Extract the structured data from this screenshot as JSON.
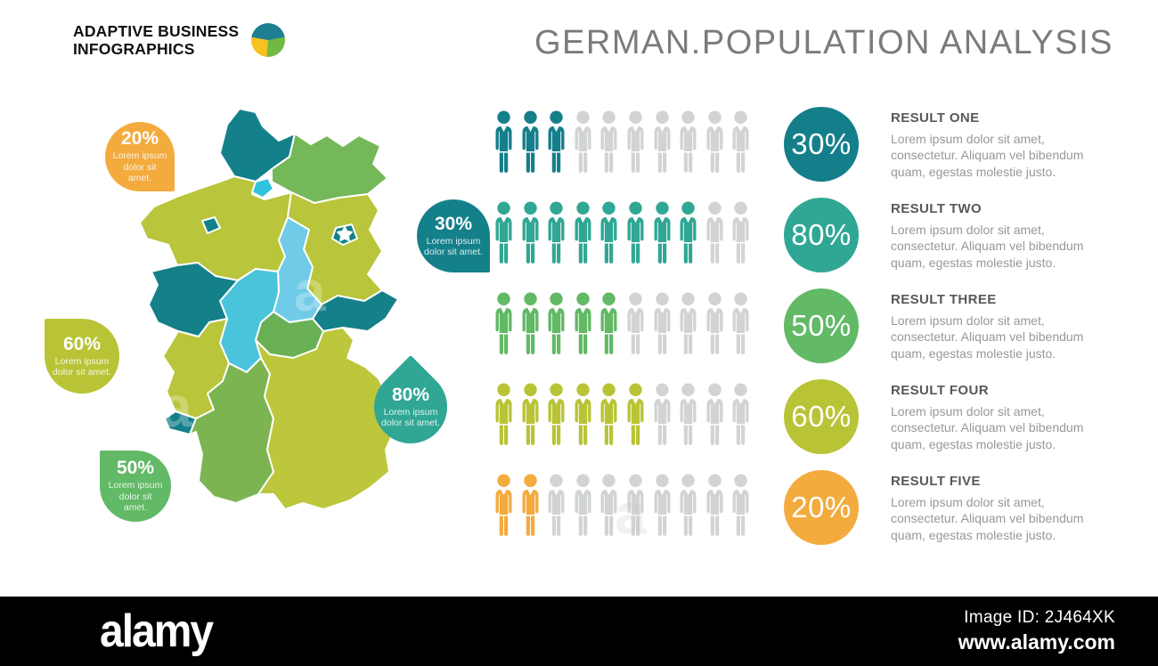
{
  "brand": {
    "line1": "ADAPTIVE BUSINESS",
    "line2": "INFOGRAPHICS",
    "pie_colors": {
      "top": "#1e7f93",
      "right": "#72b844",
      "left": "#f6c21f"
    }
  },
  "title": "GERMAN.POPULATION ANALYSIS",
  "map": {
    "regions": {
      "schleswig-holstein": "#14808a",
      "mecklenburg-vorpommern": "#74b85a",
      "hamburg": "#2fc3dd",
      "bremen": "#14808a",
      "lower-saxony": "#b9c53a",
      "brandenburg": "#b9c53a",
      "berlin": "#14808a",
      "saxony-anhalt": "#6fcbe8",
      "saxony": "#14808a",
      "thuringia": "#6ab055",
      "hesse": "#4ac4da",
      "north-rhine-westphalia": "#14808a",
      "rhineland-palatinate": "#b9c53a",
      "saarland": "#14808a",
      "baden-wurttemberg": "#7cb452",
      "bavaria": "#bcc73b"
    },
    "berlin_star_color": "#ffffff",
    "callouts": [
      {
        "value": "20%",
        "caption": "Lorem ipsum dolor sit amet.",
        "color": "#f3ab3e"
      },
      {
        "value": "30%",
        "caption": "Lorem ipsum dolor sit amet.",
        "color": "#14808a"
      },
      {
        "value": "60%",
        "caption": "Lorem ipsum dolor sit amet.",
        "color": "#b8c436"
      },
      {
        "value": "80%",
        "caption": "Lorem ipsum dolor sit amet.",
        "color": "#30a794"
      },
      {
        "value": "50%",
        "caption": "Lorem ipsum dolor sit amet.",
        "color": "#62b966"
      }
    ]
  },
  "chart_data": {
    "type": "pictograph",
    "title": "GERMAN.POPULATION ANALYSIS",
    "icons_per_row": 10,
    "icon_unit_percent": 10,
    "inactive_color": "#d1d3d4",
    "legend_position": "right",
    "series": [
      {
        "label": "RESULT ONE",
        "value": "30%",
        "percent": 30,
        "filled_icons": 3,
        "color": "#147f8b",
        "description": "Lorem ipsum dolor sit amet, consectetur. Aliquam vel bibendum quam, egestas molestie justo."
      },
      {
        "label": "RESULT TWO",
        "value": "80%",
        "percent": 80,
        "filled_icons": 8,
        "color": "#30a794",
        "description": "Lorem ipsum dolor sit amet, consectetur. Aliquam vel bibendum quam, egestas molestie justo."
      },
      {
        "label": "RESULT THREE",
        "value": "50%",
        "percent": 50,
        "filled_icons": 5,
        "color": "#62b966",
        "description": "Lorem ipsum dolor sit amet, consectetur. Aliquam vel bibendum quam, egestas molestie justo."
      },
      {
        "label": "RESULT FOUR",
        "value": "60%",
        "percent": 60,
        "filled_icons": 6,
        "color": "#b8c436",
        "description": "Lorem ipsum dolor sit amet, consectetur. Aliquam vel bibendum quam, egestas molestie justo."
      },
      {
        "label": "RESULT FIVE",
        "value": "20%",
        "percent": 20,
        "filled_icons": 2,
        "color": "#f3ab3e",
        "description": "Lorem ipsum dolor sit amet, consectetur. Aliquam vel bibendum quam, egestas molestie justo."
      }
    ]
  },
  "watermarks": [
    {
      "text": "a"
    },
    {
      "text": "a"
    },
    {
      "text": "a"
    }
  ],
  "footer": {
    "brand": "alamy",
    "image_id": "Image ID: 2J464XK",
    "website": "www.alamy.com"
  }
}
